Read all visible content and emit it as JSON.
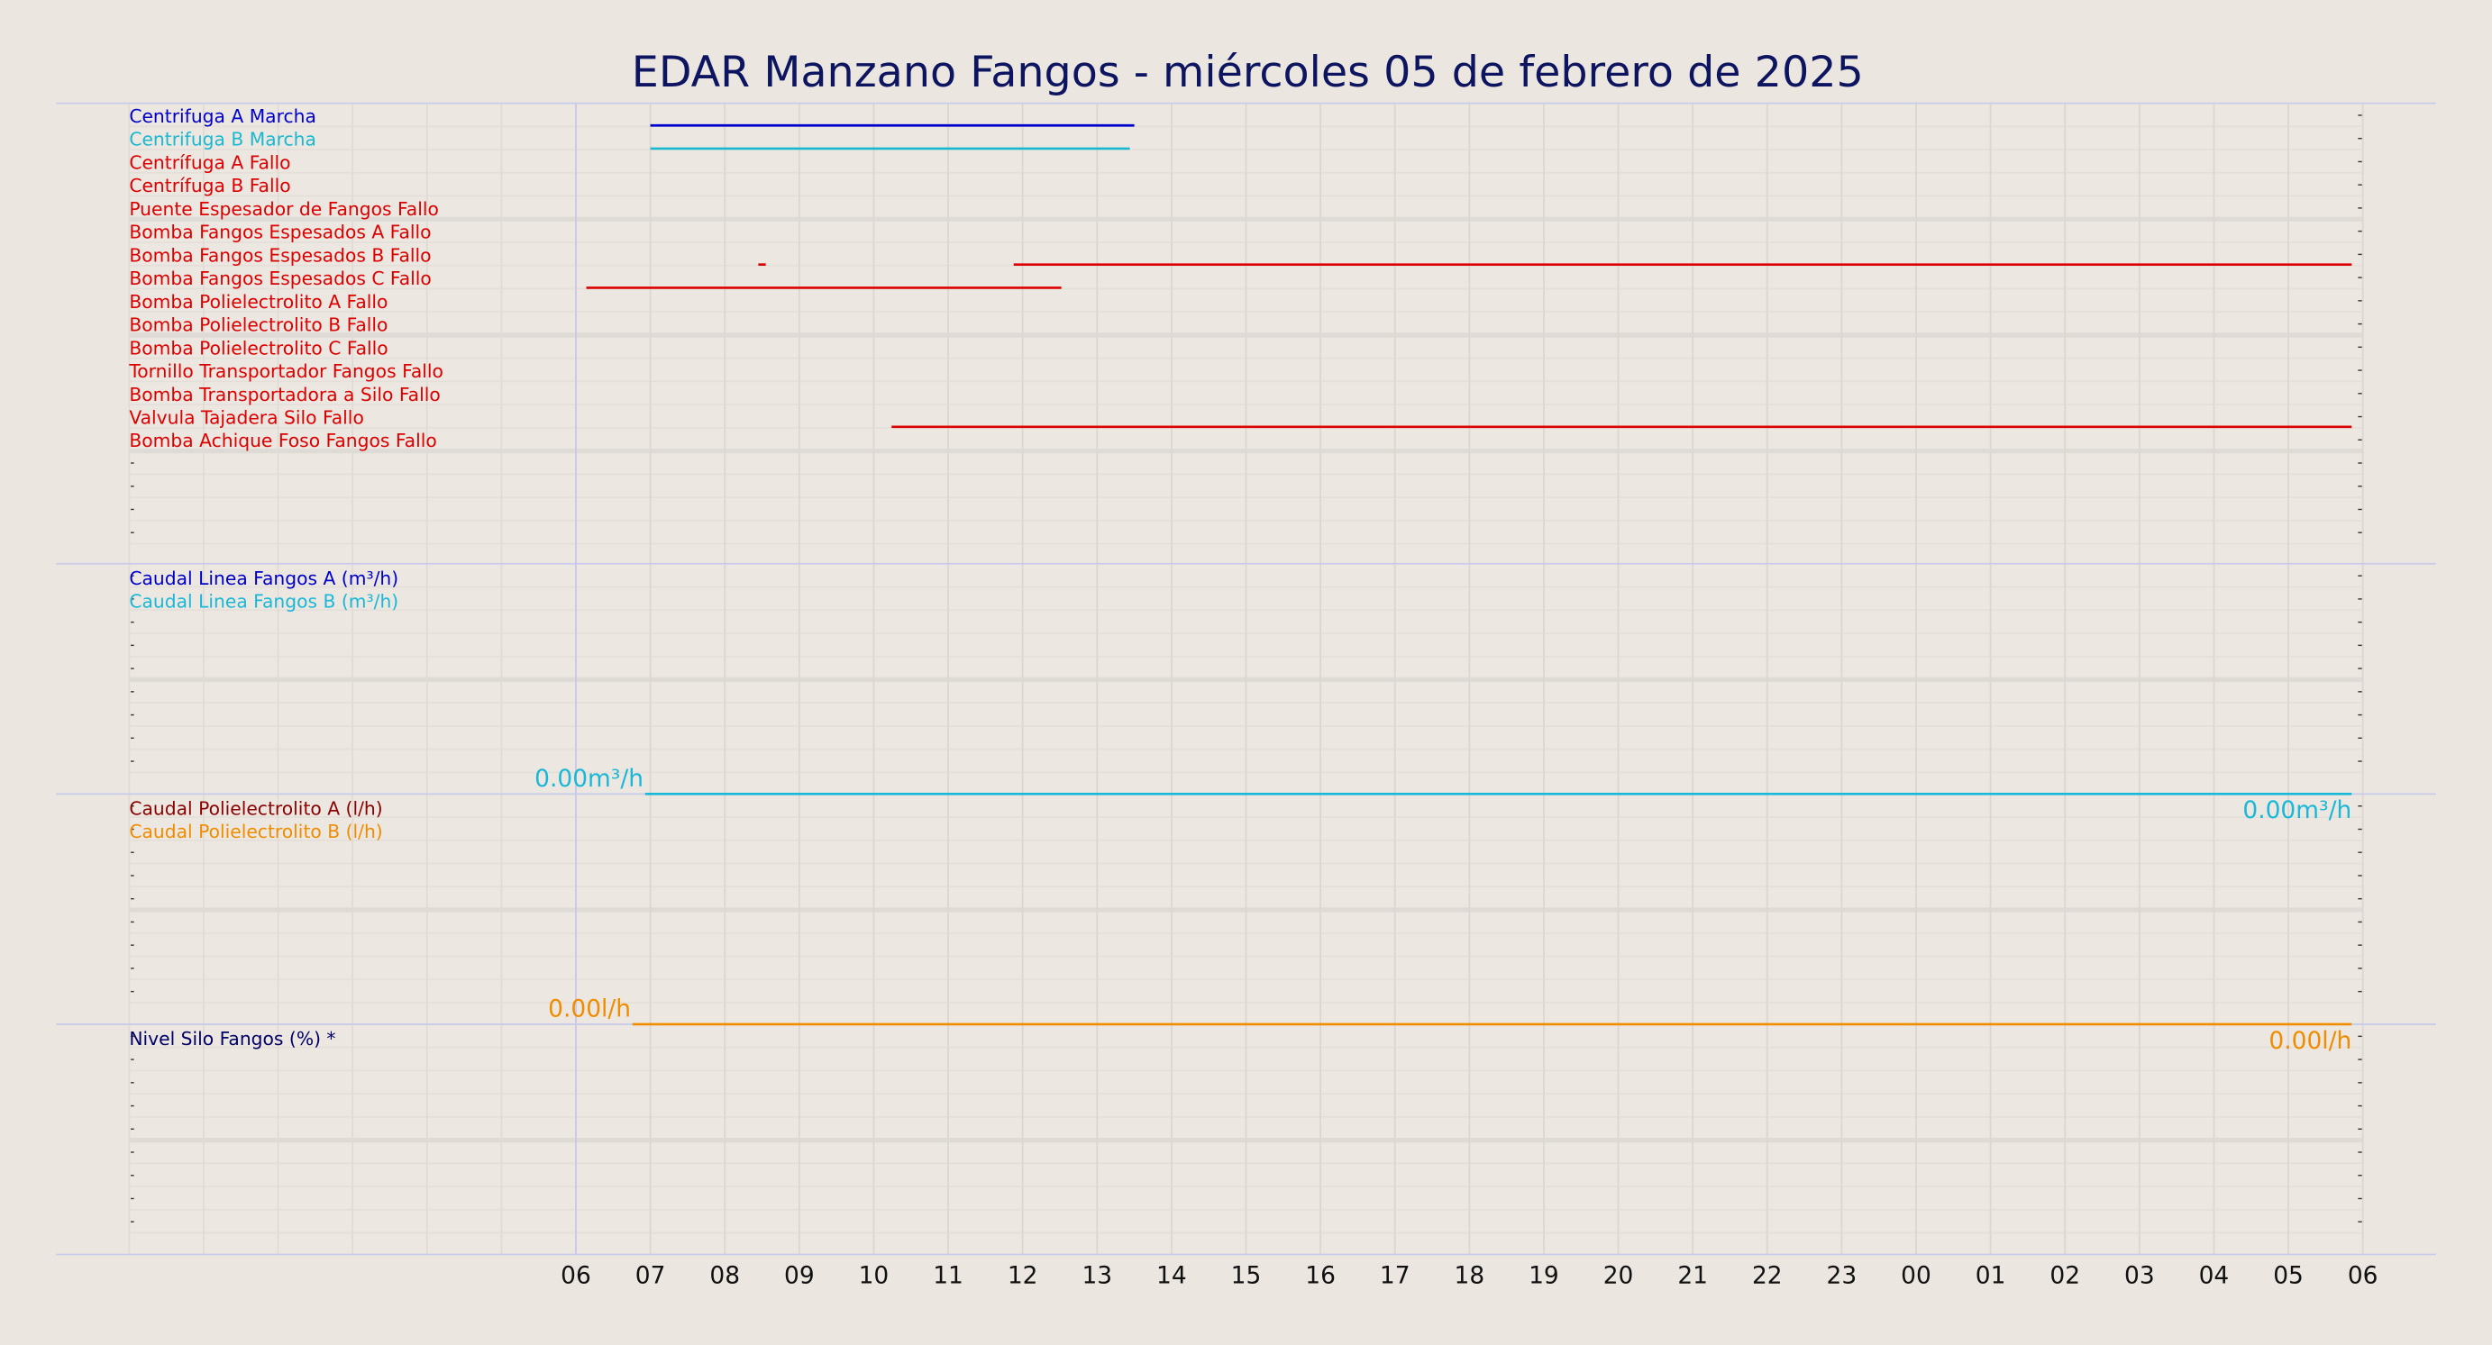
{
  "chart_data": {
    "type": "timeline",
    "title": "EDAR Manzano Fangos   -   miércoles 05 de febrero de 2025",
    "xlim": [
      0,
      30
    ],
    "xticks": [
      {
        "value": 6,
        "label": "06"
      },
      {
        "value": 7,
        "label": "07"
      },
      {
        "value": 8,
        "label": "08"
      },
      {
        "value": 9,
        "label": "09"
      },
      10,
      11,
      12,
      13,
      14,
      15,
      16,
      17,
      18,
      19,
      20,
      21,
      22,
      23,
      {
        "value": 24,
        "label": "00"
      },
      {
        "value": 25,
        "label": "01"
      },
      {
        "value": 26,
        "label": "02"
      },
      {
        "value": 27,
        "label": "03"
      },
      {
        "value": 28,
        "label": "04"
      },
      {
        "value": 29,
        "label": "05"
      },
      {
        "value": 30,
        "label": "06"
      }
    ],
    "panels": [
      {
        "type": "status",
        "series": [
          {
            "name": "Centrifuga A Marcha",
            "color": "#0000cc",
            "segments": [
              [
                7.0,
                13.5
              ]
            ]
          },
          {
            "name": "Centrifuga B Marcha",
            "color": "#1ab8cf",
            "segments": [
              [
                7.0,
                13.44
              ]
            ]
          },
          {
            "name": "Centrífuga A Fallo",
            "color": "#dd0000",
            "segments": []
          },
          {
            "name": "Centrífuga B Fallo",
            "color": "#dd0000",
            "segments": []
          },
          {
            "name": "Puente Espesador de Fangos Fallo",
            "color": "#dd0000",
            "segments": []
          },
          {
            "name": "Bomba Fangos Espesados A Fallo",
            "color": "#dd0000",
            "segments": []
          },
          {
            "name": "Bomba Fangos Espesados B Fallo",
            "color": "#dd0000",
            "segments": [
              [
                8.45,
                8.55
              ],
              [
                11.88,
                29.85
              ]
            ]
          },
          {
            "name": "Bomba Fangos Espesados C Fallo",
            "color": "#dd0000",
            "segments": [
              [
                6.14,
                12.52
              ]
            ]
          },
          {
            "name": "Bomba Polielectrolito A Fallo",
            "color": "#dd0000",
            "segments": []
          },
          {
            "name": "Bomba Polielectrolito B Fallo",
            "color": "#dd0000",
            "segments": []
          },
          {
            "name": "Bomba Polielectrolito C Fallo",
            "color": "#dd0000",
            "segments": []
          },
          {
            "name": "Tornillo Transportador Fangos Fallo",
            "color": "#dd0000",
            "segments": []
          },
          {
            "name": "Bomba Transportadora a Silo Fallo",
            "color": "#dd0000",
            "segments": []
          },
          {
            "name": "Valvula Tajadera Silo Fallo",
            "color": "#dd0000",
            "segments": [
              [
                10.24,
                29.85
              ]
            ]
          },
          {
            "name": "Bomba Achique Foso Fangos Fallo",
            "color": "#dd0000",
            "segments": []
          }
        ]
      },
      {
        "type": "line",
        "ylim": [
          0,
          1
        ],
        "series": [
          {
            "name": "Caudal Linea Fangos A (m³/h)",
            "color": "#0000cc"
          },
          {
            "name": "Caudal Linea Fangos B (m³/h)",
            "color": "#1ab8d8",
            "x": [
              6.93,
              29.85
            ],
            "values": [
              0,
              0
            ],
            "value_labels": [
              "0.00m³/h",
              "0.00m³/h"
            ]
          }
        ]
      },
      {
        "type": "line",
        "ylim": [
          0,
          1
        ],
        "series": [
          {
            "name": "Caudal Polielectrolito A (l/h)",
            "color": "#8b0000"
          },
          {
            "name": "Caudal Polielectrolito B (l/h)",
            "color": "#f08c00",
            "x": [
              6.76,
              29.85
            ],
            "values": [
              0,
              0
            ],
            "value_labels": [
              "0.00l/h",
              "0.00l/h"
            ]
          }
        ]
      },
      {
        "type": "line",
        "ylim": [
          0,
          1
        ],
        "series": [
          {
            "name": "Nivel Silo Fangos (%) *",
            "color": "#000066"
          }
        ]
      }
    ]
  }
}
